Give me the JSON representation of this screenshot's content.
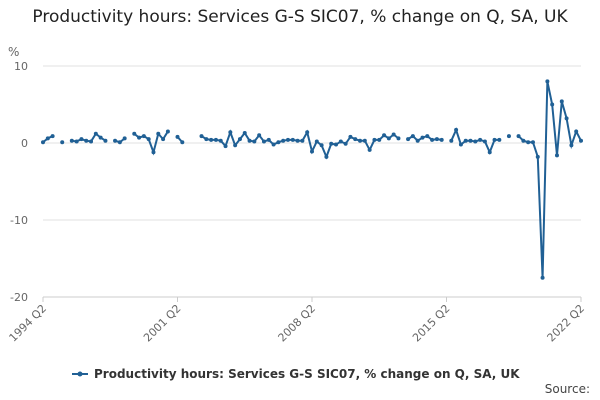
{
  "chart_data": {
    "type": "line",
    "title": "Productivity hours: Services G-S SIC07, % change on Q, SA, UK",
    "y_label": "%",
    "source": "Source:",
    "categories": [
      "1994 Q2",
      null,
      null,
      null,
      null,
      null,
      null,
      null,
      null,
      null,
      null,
      null,
      null,
      null,
      null,
      null,
      null,
      null,
      null,
      null,
      null,
      null,
      null,
      null,
      null,
      null,
      null,
      null,
      "2001 Q2",
      null,
      null,
      null,
      null,
      null,
      null,
      null,
      null,
      null,
      null,
      null,
      null,
      null,
      null,
      null,
      null,
      null,
      null,
      null,
      null,
      null,
      null,
      null,
      null,
      null,
      null,
      null,
      "2008 Q2",
      null,
      null,
      null,
      null,
      null,
      null,
      null,
      null,
      null,
      null,
      null,
      null,
      null,
      null,
      null,
      null,
      null,
      null,
      null,
      null,
      null,
      null,
      null,
      null,
      null,
      null,
      null,
      "2015 Q2",
      null,
      null,
      null,
      null,
      null,
      null,
      null,
      null,
      null,
      null,
      null,
      null,
      null,
      null,
      null,
      null,
      null,
      null,
      null,
      null,
      null,
      null,
      null,
      null,
      null,
      null,
      null,
      "2022 Q2"
    ],
    "series": [
      {
        "name": "Productivity hours: Services G-S SIC07, % change on Q, SA, UK",
        "color": "#206095",
        "values": [
          0.1,
          0.6,
          0.9,
          null,
          0.1,
          null,
          0.3,
          0.2,
          0.5,
          0.3,
          0.2,
          1.2,
          0.7,
          0.3,
          null,
          0.3,
          0.1,
          0.6,
          null,
          1.2,
          0.7,
          0.9,
          0.5,
          -1.2,
          1.2,
          0.5,
          1.5,
          null,
          0.8,
          0.1,
          null,
          null,
          null,
          0.9,
          0.5,
          0.4,
          0.4,
          0.3,
          -0.4,
          1.4,
          -0.3,
          0.5,
          1.3,
          0.3,
          0.2,
          1.0,
          0.2,
          0.4,
          -0.2,
          0.1,
          0.3,
          0.4,
          0.4,
          0.3,
          0.3,
          1.4,
          -1.1,
          0.2,
          -0.3,
          -1.8,
          -0.1,
          -0.2,
          0.2,
          -0.1,
          0.8,
          0.5,
          0.3,
          0.3,
          -0.9,
          0.4,
          0.4,
          1.0,
          0.6,
          1.1,
          0.6,
          null,
          0.5,
          0.9,
          0.3,
          0.7,
          0.9,
          0.4,
          0.5,
          0.4,
          null,
          0.3,
          1.7,
          -0.2,
          0.3,
          0.3,
          0.2,
          0.4,
          0.2,
          -1.2,
          0.4,
          0.4,
          null,
          0.9,
          null,
          0.9,
          0.3,
          0.1,
          0.1,
          -1.8,
          -17.5,
          8.0,
          5.0,
          -1.6,
          5.4,
          3.2,
          -0.3,
          1.5,
          0.3
        ]
      }
    ],
    "ylim": [
      -20,
      10
    ],
    "yticks": [
      -20,
      -10,
      0,
      10
    ],
    "grid": true
  }
}
